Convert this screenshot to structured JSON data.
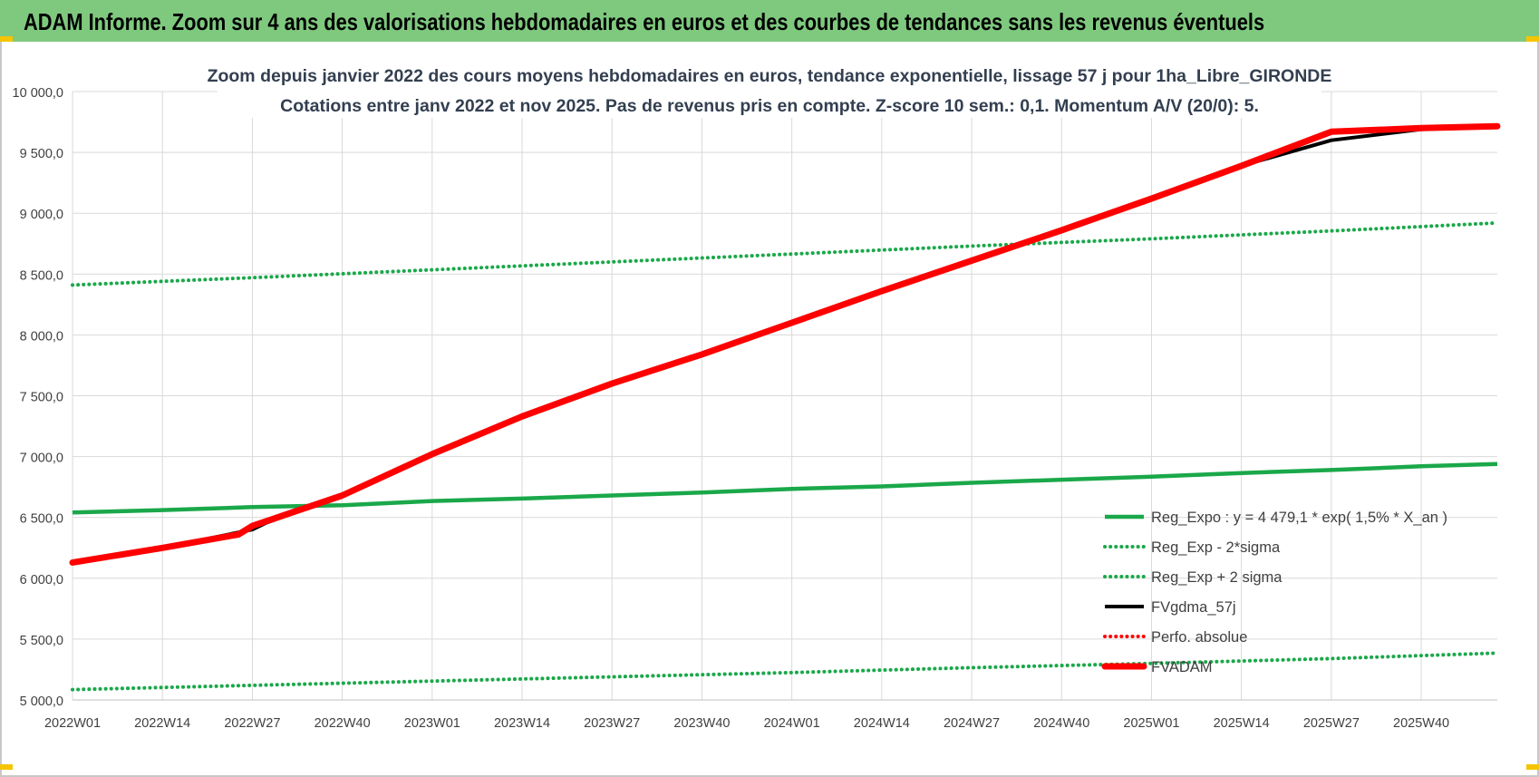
{
  "banner": {
    "title": "ADAM Informe. Zoom sur 4 ans des valorisations hebdomadaires en euros et des courbes de tendances sans les revenus éventuels"
  },
  "chart_data": {
    "type": "line",
    "title": "Zoom depuis janvier 2022 des cours moyens hebdomadaires en euros, tendance exponentielle, lissage 57 j pour 1ha_Libre_GIRONDE",
    "subtitle": "Cotations entre janv 2022 et nov 2025. Pas de revenus pris en compte. Z-score 10 sem.: 0,1. Momentum A/V (20/0): 5.",
    "xlabel": "",
    "ylabel": "",
    "ylim": [
      5000,
      10000
    ],
    "y_ticks": [
      "5 000,0",
      "5 500,0",
      "6 000,0",
      "6 500,0",
      "7 000,0",
      "7 500,0",
      "8 000,0",
      "8 500,0",
      "9 000,0",
      "9 500,0",
      "10 000,0"
    ],
    "x_ticks": [
      "2022W01",
      "2022W14",
      "2022W27",
      "2022W40",
      "2023W01",
      "2023W14",
      "2023W27",
      "2023W40",
      "2024W01",
      "2024W14",
      "2024W27",
      "2024W40",
      "2025W01",
      "2025W14",
      "2025W27",
      "2025W40"
    ],
    "x_week_span": [
      0,
      206
    ],
    "grid": true,
    "legend_position": "bottom-right",
    "series": [
      {
        "name": "Reg_Expo : y = 4 479,1 * exp( 1,5% *  X_an )",
        "color": "#1aa84a",
        "style": "solid-thick",
        "x": [
          0,
          13,
          26,
          39,
          52,
          65,
          78,
          91,
          104,
          117,
          130,
          143,
          156,
          169,
          182,
          195,
          206
        ],
        "y": [
          6540,
          6560,
          6585,
          6600,
          6635,
          6655,
          6680,
          6705,
          6735,
          6755,
          6785,
          6810,
          6835,
          6865,
          6890,
          6920,
          6940
        ]
      },
      {
        "name": "Reg_Exp - 2*sigma",
        "color": "#1aa84a",
        "style": "dotted",
        "x": [
          0,
          26,
          52,
          78,
          104,
          130,
          156,
          182,
          206
        ],
        "y": [
          5085,
          5120,
          5155,
          5190,
          5225,
          5265,
          5300,
          5340,
          5385
        ]
      },
      {
        "name": "Reg_Exp + 2 sigma",
        "color": "#1aa84a",
        "style": "dotted",
        "x": [
          0,
          26,
          52,
          78,
          104,
          130,
          156,
          182,
          206
        ],
        "y": [
          8410,
          8470,
          8535,
          8600,
          8665,
          8730,
          8790,
          8855,
          8920
        ]
      },
      {
        "name": "FVgdma_57j",
        "color": "#000000",
        "style": "solid",
        "x": [
          0,
          13,
          26,
          28,
          39,
          52,
          65,
          78,
          91,
          104,
          117,
          130,
          143,
          156,
          169,
          182,
          195,
          206
        ],
        "y": [
          6130,
          6250,
          6400,
          6455,
          6680,
          7020,
          7330,
          7600,
          7840,
          8100,
          8360,
          8610,
          8860,
          9120,
          9390,
          9600,
          9690,
          9715
        ]
      },
      {
        "name": "Perfo. absolue",
        "color": "#ff0000",
        "style": "dotted",
        "x": [],
        "y": []
      },
      {
        "name": "FVADAM",
        "color": "#ff0000",
        "style": "solid-thick",
        "x": [
          0,
          13,
          24,
          26,
          39,
          52,
          65,
          78,
          91,
          104,
          117,
          130,
          143,
          156,
          169,
          182,
          195,
          206
        ],
        "y": [
          6130,
          6250,
          6360,
          6430,
          6680,
          7020,
          7330,
          7600,
          7840,
          8100,
          8360,
          8610,
          8860,
          9120,
          9390,
          9670,
          9700,
          9715
        ]
      }
    ]
  },
  "colors": {
    "banner": "#7fc97f",
    "grid": "#d9d9d9",
    "accent_corner": "#f5c400"
  }
}
